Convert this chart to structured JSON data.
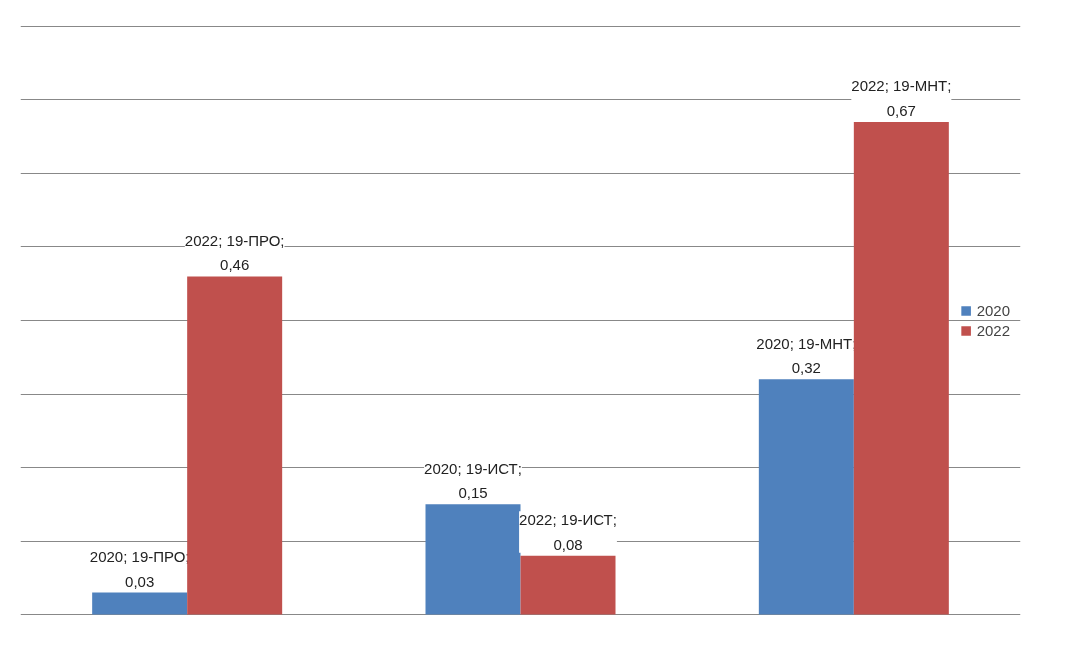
{
  "chart_data": {
    "type": "bar",
    "categories": [
      null,
      null,
      null
    ],
    "series": [
      {
        "name": "2020",
        "color": "#4f81bd",
        "values": [
          0.03,
          0.15,
          0.32
        ],
        "value_labels": [
          "2020; 19-ПРО; 0,03",
          "2020; 19-ИСТ; 0,15",
          "2020; 19-МНТ; 0,32"
        ]
      },
      {
        "name": "2022",
        "color": "#c0504d",
        "values": [
          0.46,
          0.08,
          0.67
        ],
        "value_labels": [
          "2022; 19-ПРО; 0,46",
          "2022; 19-ИСТ; 0,08",
          "2022; 19-МНТ; 0,67"
        ]
      }
    ],
    "yticks": [
      {
        "value": 0,
        "label": null
      },
      {
        "value": 0.1,
        "label": null
      },
      {
        "value": 0.2,
        "label": null
      },
      {
        "value": 0.3,
        "label": null
      },
      {
        "value": 0.4,
        "label": null
      },
      {
        "value": 0.5,
        "label": null
      },
      {
        "value": 0.6,
        "label": null
      },
      {
        "value": 0.7,
        "label": null
      },
      {
        "value": 0.8,
        "label": null
      }
    ],
    "tick_labels": false,
    "grid": "y",
    "legend": "right"
  }
}
